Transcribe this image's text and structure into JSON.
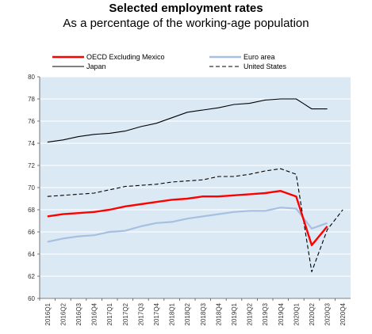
{
  "chart_data": {
    "type": "line",
    "title": "Selected employment rates",
    "subtitle": "As a percentage of the working-age population",
    "xlabel": "",
    "ylabel": "",
    "ylim": [
      60,
      80
    ],
    "yticks": [
      60,
      62,
      64,
      66,
      68,
      70,
      72,
      74,
      76,
      78,
      80
    ],
    "categories": [
      "2016Q1",
      "2016Q2",
      "2016Q3",
      "2016Q4",
      "2017Q1",
      "2017Q2",
      "2017Q3",
      "2017Q4",
      "2018Q1",
      "2018Q2",
      "2018Q3",
      "2018Q4",
      "2019Q1",
      "2019Q2",
      "2019Q3",
      "2019Q4",
      "2020Q1",
      "2020Q2",
      "2020Q3",
      "2020Q4"
    ],
    "grid": true,
    "legend": "top-left",
    "series": [
      {
        "name": "OECD Excluding Mexico",
        "color": "#ff0000",
        "style": "solid",
        "values": [
          67.4,
          67.6,
          67.7,
          67.8,
          68.0,
          68.3,
          68.5,
          68.7,
          68.9,
          69.0,
          69.2,
          69.2,
          69.3,
          69.4,
          69.5,
          69.7,
          69.2,
          64.8,
          66.5,
          null
        ]
      },
      {
        "name": "Japan",
        "color": "#000000",
        "style": "solid",
        "values": [
          74.1,
          74.3,
          74.6,
          74.8,
          74.9,
          75.1,
          75.5,
          75.8,
          76.3,
          76.8,
          77.0,
          77.2,
          77.5,
          77.6,
          77.9,
          78.0,
          78.0,
          77.1,
          77.1,
          null
        ]
      },
      {
        "name": "Euro area",
        "color": "#a7bfe1",
        "style": "solid",
        "values": [
          65.1,
          65.4,
          65.6,
          65.7,
          66.0,
          66.1,
          66.5,
          66.8,
          66.9,
          67.2,
          67.4,
          67.6,
          67.8,
          67.9,
          67.9,
          68.2,
          68.1,
          66.3,
          66.8,
          null
        ]
      },
      {
        "name": "United States",
        "color": "#000000",
        "style": "dashed",
        "values": [
          69.2,
          69.3,
          69.4,
          69.5,
          69.8,
          70.1,
          70.2,
          70.3,
          70.5,
          70.6,
          70.7,
          71.0,
          71.0,
          71.2,
          71.5,
          71.7,
          71.2,
          62.4,
          66.2,
          68.0
        ]
      }
    ]
  }
}
